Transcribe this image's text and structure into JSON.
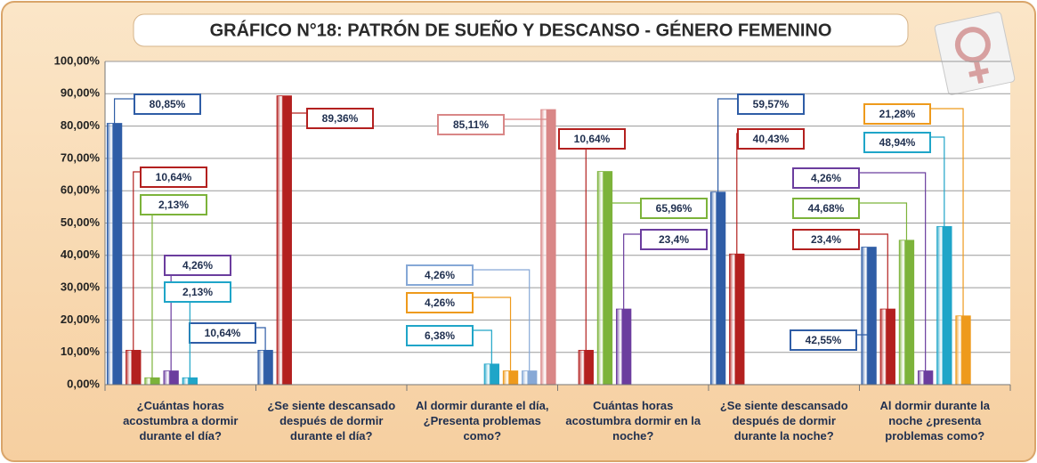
{
  "chart_data": {
    "type": "bar",
    "title": "GRÁFICO N°18: PATRÓN DE SUEÑO Y DESCANSO - GÉNERO FEMENINO",
    "categories": [
      "¿Cuántas horas acostumbra a dormir durante el día?",
      "¿Se siente descansado después de dormir durante el día?",
      "Al dormir durante el día, ¿Presenta problemas como?",
      "Cuántas horas acostumbra dormir en la noche?",
      "¿Se siente descansado después de dormir durante la noche?",
      "Al dormir durante la noche ¿presenta problemas como?"
    ],
    "series": [
      {
        "color": "#2f5da6",
        "values": [
          80.85,
          10.64,
          null,
          null,
          59.57,
          42.55
        ],
        "value_labels": [
          "80,85%",
          "10,64%",
          null,
          null,
          "59,57%",
          "42,55%"
        ]
      },
      {
        "color": "#b3201f",
        "values": [
          10.64,
          89.36,
          null,
          10.64,
          40.43,
          23.4
        ],
        "value_labels": [
          "10,64%",
          "89,36%",
          null,
          "10,64%",
          "40,43%",
          "23,4%"
        ]
      },
      {
        "color": "#7cb33a",
        "values": [
          2.13,
          null,
          null,
          65.96,
          null,
          44.68
        ],
        "value_labels": [
          "2,13%",
          null,
          null,
          "65,96%",
          null,
          "44,68%"
        ]
      },
      {
        "color": "#6b3d9e",
        "values": [
          4.26,
          null,
          null,
          23.4,
          null,
          4.26
        ],
        "value_labels": [
          "4,26%",
          null,
          null,
          "23,4%",
          null,
          "4,26%"
        ]
      },
      {
        "color": "#1fa5c8",
        "values": [
          2.13,
          null,
          6.38,
          null,
          null,
          48.94
        ],
        "value_labels": [
          "2,13%",
          null,
          "6,38%",
          null,
          null,
          "48,94%"
        ]
      },
      {
        "color": "#ee9a1c",
        "values": [
          null,
          null,
          4.26,
          null,
          null,
          21.28
        ],
        "value_labels": [
          null,
          null,
          "4,26%",
          null,
          null,
          "21,28%"
        ]
      },
      {
        "color": "#86a8d6",
        "values": [
          null,
          null,
          4.26,
          null,
          null,
          null
        ],
        "value_labels": [
          null,
          null,
          "4,26%",
          null,
          null,
          null
        ]
      },
      {
        "color": "#d98787",
        "values": [
          null,
          null,
          85.11,
          null,
          null,
          null
        ],
        "value_labels": [
          null,
          null,
          "85,11%",
          null,
          null,
          null
        ]
      }
    ],
    "ylim": [
      0,
      100
    ],
    "yticks": [
      {
        "value": 0,
        "label": "0,00%"
      },
      {
        "value": 10,
        "label": "10,00%"
      },
      {
        "value": 20,
        "label": "20,00%"
      },
      {
        "value": 30,
        "label": "30,00%"
      },
      {
        "value": 40,
        "label": "40,00%"
      },
      {
        "value": 50,
        "label": "50,00%"
      },
      {
        "value": 60,
        "label": "60,00%"
      },
      {
        "value": 70,
        "label": "70,00%"
      },
      {
        "value": 80,
        "label": "80,00%"
      },
      {
        "value": 90,
        "label": "90,00%"
      },
      {
        "value": 100,
        "label": "100,00%"
      }
    ],
    "grid": true
  }
}
